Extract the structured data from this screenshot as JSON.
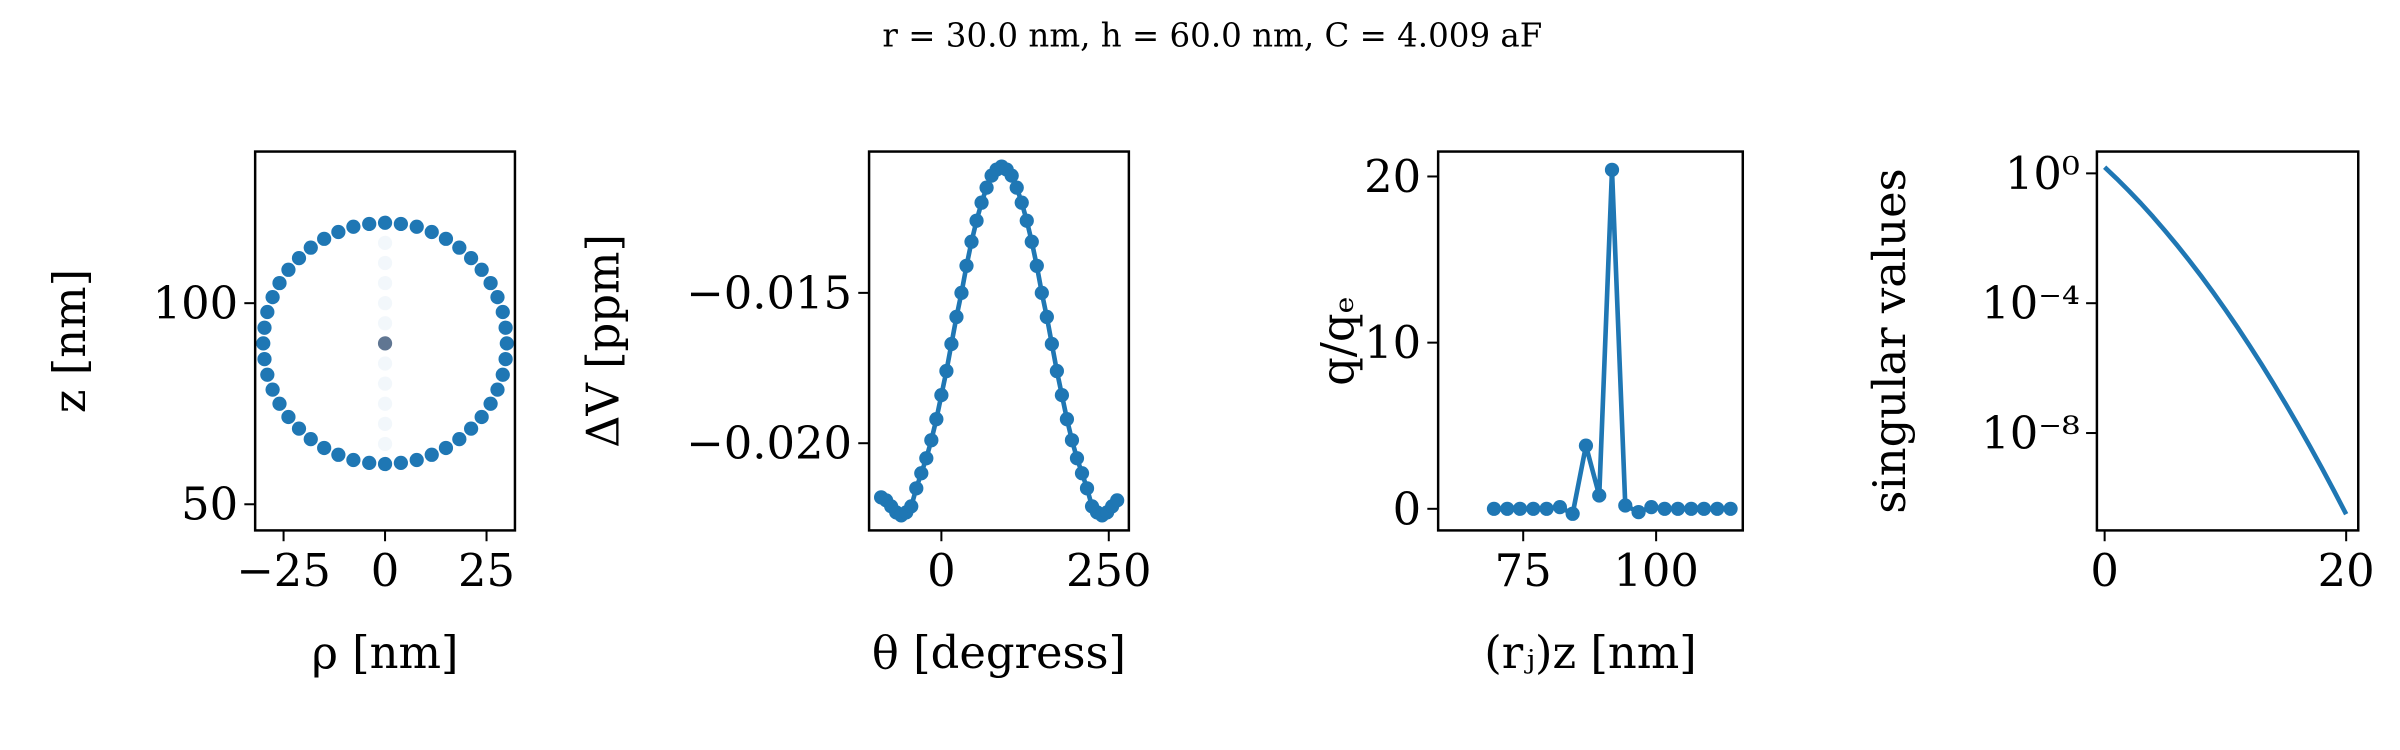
{
  "title": "r = 30.0 nm, h = 60.0 nm, C = 4.009 aF",
  "chart_data": [
    {
      "type": "scatter",
      "x_label": "ρ [nm]",
      "y_label": "z [nm]",
      "xlim": [
        -32,
        32
      ],
      "ylim": [
        43.5,
        137.7
      ],
      "xticks": [
        {
          "value": -25,
          "label": "−25"
        },
        0,
        25
      ],
      "yticks": [
        50,
        100
      ],
      "series": [
        {
          "color": "#1f77b4",
          "x": [
            0,
            3.9,
            7.8,
            11.5,
            15,
            18.3,
            21.2,
            23.8,
            26.0,
            27.7,
            29.0,
            29.7,
            30,
            29.7,
            29.0,
            27.7,
            26.0,
            23.8,
            21.2,
            18.3,
            15,
            11.5,
            7.8,
            3.9,
            0,
            -3.9,
            -7.8,
            -11.5,
            -15,
            -18.3,
            -21.2,
            -23.8,
            -26,
            -27.7,
            -29,
            -29.7,
            -30,
            -29.7,
            -29,
            -27.7,
            -26,
            -23.8,
            -21.2,
            -18.3,
            -15,
            -11.5,
            -7.8,
            -3.9
          ],
          "values": [
            120,
            119.7,
            119.0,
            117.7,
            116.0,
            113.8,
            111.2,
            108.3,
            105,
            101.5,
            97.8,
            93.9,
            90,
            86.1,
            82.2,
            78.5,
            75,
            71.7,
            68.8,
            66.2,
            64,
            62.3,
            61,
            60.3,
            60,
            60.3,
            61,
            62.3,
            64,
            66.2,
            68.8,
            71.7,
            75,
            78.5,
            82.2,
            86.1,
            90,
            93.9,
            97.8,
            101.5,
            105,
            108.3,
            111.2,
            113.8,
            116,
            117.7,
            119,
            119.7
          ]
        },
        {
          "color": "#1f77b4",
          "opacity": 0.06,
          "x": [
            0,
            0,
            0,
            0,
            0,
            0,
            0,
            0,
            0,
            0,
            0,
            0,
            0
          ],
          "values": [
            60,
            65,
            70,
            75,
            80,
            85,
            90,
            95,
            100,
            105,
            110,
            115,
            120
          ]
        },
        {
          "color": "#3b5578",
          "opacity": 0.8,
          "x": [
            0
          ],
          "values": [
            90
          ]
        }
      ]
    },
    {
      "type": "line",
      "markers": true,
      "x_label": "θ [degress]",
      "y_label": "ΔV [ppm]",
      "xlim": [
        -108,
        280
      ],
      "ylim": [
        -0.0229,
        -0.0103
      ],
      "xticks": [
        0,
        250
      ],
      "yticks": [
        {
          "value": -0.015,
          "label": "−0.015"
        },
        {
          "value": -0.02,
          "label": "−0.020"
        }
      ],
      "series": [
        {
          "color": "#1f77b4",
          "x": [
            -90,
            -82.5,
            -75,
            -67.5,
            -60,
            -52.5,
            -45,
            -37.5,
            -30,
            -22.5,
            -15,
            -7.5,
            0,
            7.5,
            15,
            22.5,
            30,
            37.5,
            45,
            52.5,
            60,
            67.5,
            75,
            82.5,
            90,
            97.5,
            105,
            112.5,
            120,
            127.5,
            135,
            142.5,
            150,
            157.5,
            165,
            172.5,
            180,
            187.5,
            195,
            202.5,
            210,
            217.5,
            225,
            232.5,
            240,
            247.5,
            255,
            262.5
          ],
          "values": [
            -0.0218,
            -0.0219,
            -0.0221,
            -0.0223,
            -0.0224,
            -0.0223,
            -0.0221,
            -0.0215,
            -0.021,
            -0.0205,
            -0.0199,
            -0.0192,
            -0.0184,
            -0.0176,
            -0.0167,
            -0.0158,
            -0.015,
            -0.0141,
            -0.0133,
            -0.0126,
            -0.012,
            -0.0115,
            -0.0111,
            -0.0109,
            -0.0108,
            -0.0109,
            -0.0111,
            -0.0115,
            -0.012,
            -0.0126,
            -0.0133,
            -0.0141,
            -0.015,
            -0.0158,
            -0.0167,
            -0.0176,
            -0.0184,
            -0.0192,
            -0.0199,
            -0.0205,
            -0.021,
            -0.0215,
            -0.0221,
            -0.0223,
            -0.0224,
            -0.0223,
            -0.0221,
            -0.0219
          ]
        }
      ]
    },
    {
      "type": "line",
      "markers": true,
      "x_label": "(rⱼ)z [nm]",
      "y_label": "q/qₑ",
      "xlim": [
        59,
        116.3
      ],
      "ylim": [
        -1.3,
        21.5
      ],
      "xticks": [
        75,
        100
      ],
      "yticks": [
        0,
        10,
        20
      ],
      "series": [
        {
          "color": "#1f77b4",
          "x": [
            69.5,
            72.0,
            74.4,
            76.9,
            79.4,
            81.9,
            84.3,
            86.8,
            89.3,
            91.7,
            94.2,
            96.7,
            99.1,
            101.6,
            104.1,
            106.6,
            109.0,
            111.5,
            114.0
          ],
          "values": [
            0,
            0,
            0,
            0,
            0,
            0.1,
            -0.3,
            3.8,
            0.8,
            20.4,
            0.2,
            -0.2,
            0.1,
            0,
            0,
            0,
            0,
            0,
            0
          ]
        }
      ]
    },
    {
      "type": "line",
      "markers": false,
      "yscale": "log",
      "y_label": "singular values",
      "xlim": [
        -0.64,
        21.0
      ],
      "ylim": [
        1e-11,
        4.7
      ],
      "xticks": [
        0,
        20
      ],
      "yticks": [
        {
          "value": 1,
          "label": "10⁰"
        },
        {
          "value": 0.0001,
          "label": "10⁻⁴"
        },
        {
          "value": 1e-08,
          "label": "10⁻⁸"
        }
      ],
      "series": [
        {
          "color": "#1f77b4",
          "x": [
            0,
            1,
            2,
            3,
            4,
            5,
            6,
            7,
            8,
            9,
            10,
            11,
            12,
            13,
            14,
            15,
            16,
            17,
            18,
            19,
            20
          ],
          "values": [
            1.55,
            0.687,
            0.292,
            0.119,
            0.0461,
            0.0171,
            0.0061,
            0.00208,
            0.000678,
            0.000211,
            6.3e-05,
            1.8e-05,
            4.93e-06,
            1.29e-06,
            3.23e-07,
            7.74e-08,
            1.77e-08,
            3.89e-09,
            8.18e-10,
            1.64e-10,
            3.16e-11
          ]
        }
      ]
    }
  ]
}
